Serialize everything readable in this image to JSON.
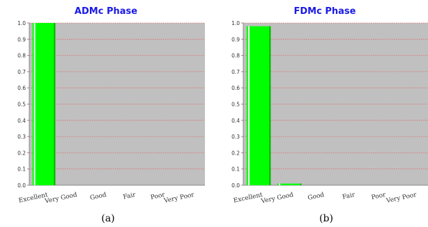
{
  "chart_data": [
    {
      "type": "bar",
      "title": "ADMc Phase",
      "categories": [
        "Excellent",
        "Very Good",
        "Good",
        "Fair",
        "Poor",
        "Very Poor"
      ],
      "values": [
        1.0,
        0.0,
        0.0,
        0.0,
        0.0,
        0.0
      ],
      "ylim": [
        0,
        1.0
      ],
      "yticks": [
        "0.0",
        "0.1",
        "0.2",
        "0.3",
        "0.4",
        "0.5",
        "0.6",
        "0.7",
        "0.8",
        "0.9",
        "1.0"
      ],
      "grid": true,
      "caption": "(a)"
    },
    {
      "type": "bar",
      "title": "FDMc Phase",
      "categories": [
        "Excellent",
        "Very Good",
        "Good",
        "Fair",
        "Poor",
        "Very Poor"
      ],
      "values": [
        0.98,
        0.01,
        0.0,
        0.0,
        0.0,
        0.0
      ],
      "ylim": [
        0,
        1.0
      ],
      "yticks": [
        "0.0",
        "0.1",
        "0.2",
        "0.3",
        "0.4",
        "0.5",
        "0.6",
        "0.7",
        "0.8",
        "0.9",
        "1.0"
      ],
      "grid": true,
      "caption": "(b)"
    }
  ],
  "colors": {
    "plot_background": "#c0c0c0",
    "bar": "#00ff00",
    "bar_highlight": "#ffffff",
    "bar_shadow": "#00b300",
    "grid": "#e06a6a",
    "title": "#1a1ae6",
    "tick_text": "#333333",
    "caption": "#000000"
  }
}
